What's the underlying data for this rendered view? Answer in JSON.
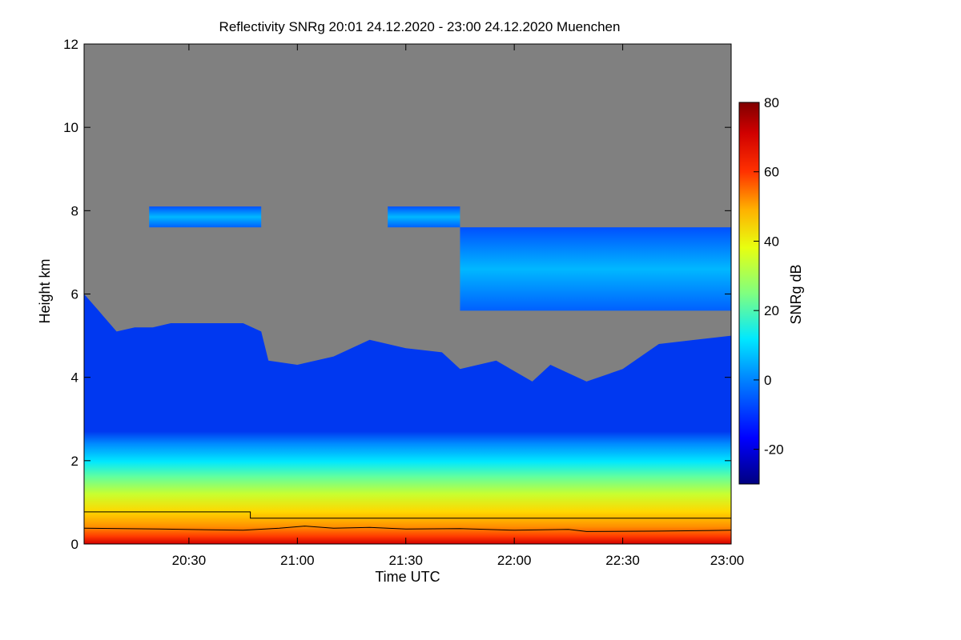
{
  "chart_data": {
    "type": "heatmap",
    "title": "Reflectivity SNRg   20:01 24.12.2020 - 23:00 24.12.2020 Muenchen",
    "xlabel": "Time UTC",
    "ylabel": "Height km",
    "x_range": [
      "20:01",
      "23:00"
    ],
    "xlim_minutes_utc": [
      1201,
      1380
    ],
    "x_ticks": [
      {
        "label": "20:30",
        "value": 1230
      },
      {
        "label": "21:00",
        "value": 1260
      },
      {
        "label": "21:30",
        "value": 1290
      },
      {
        "label": "22:00",
        "value": 1320
      },
      {
        "label": "22:30",
        "value": 1350
      },
      {
        "label": "23:00",
        "value": 1380
      }
    ],
    "ylim": [
      0,
      12
    ],
    "y_ticks": [
      {
        "label": "0",
        "value": 0
      },
      {
        "label": "2",
        "value": 2
      },
      {
        "label": "4",
        "value": 4
      },
      {
        "label": "6",
        "value": 6
      },
      {
        "label": "8",
        "value": 8
      },
      {
        "label": "10",
        "value": 10
      },
      {
        "label": "12",
        "value": 12
      }
    ],
    "colorbar": {
      "label": "SNRg dB",
      "range": [
        -30,
        80
      ],
      "ticks": [
        {
          "label": "-20",
          "value": -20
        },
        {
          "label": "0",
          "value": 0
        },
        {
          "label": "20",
          "value": 20
        },
        {
          "label": "40",
          "value": 40
        },
        {
          "label": "60",
          "value": 60
        },
        {
          "label": "80",
          "value": 80
        }
      ]
    },
    "no_signal_color": "#808080",
    "cloud_top_profile_km": [
      {
        "t": 1201,
        "h": 6.0
      },
      {
        "t": 1205,
        "h": 5.6
      },
      {
        "t": 1210,
        "h": 5.1
      },
      {
        "t": 1215,
        "h": 5.2
      },
      {
        "t": 1220,
        "h": 5.2
      },
      {
        "t": 1225,
        "h": 5.3
      },
      {
        "t": 1235,
        "h": 5.3
      },
      {
        "t": 1245,
        "h": 5.3
      },
      {
        "t": 1250,
        "h": 5.1
      },
      {
        "t": 1252,
        "h": 4.4
      },
      {
        "t": 1260,
        "h": 4.3
      },
      {
        "t": 1270,
        "h": 4.5
      },
      {
        "t": 1280,
        "h": 4.9
      },
      {
        "t": 1290,
        "h": 4.7
      },
      {
        "t": 1300,
        "h": 4.6
      },
      {
        "t": 1305,
        "h": 4.2
      },
      {
        "t": 1315,
        "h": 4.4
      },
      {
        "t": 1325,
        "h": 3.9
      },
      {
        "t": 1330,
        "h": 4.3
      },
      {
        "t": 1340,
        "h": 3.9
      },
      {
        "t": 1350,
        "h": 4.2
      },
      {
        "t": 1360,
        "h": 4.8
      },
      {
        "t": 1370,
        "h": 4.9
      },
      {
        "t": 1380,
        "h": 5.0
      }
    ],
    "upper_cloud_layers": [
      {
        "t0": 1219,
        "t1": 1250,
        "bottom_km": 7.6,
        "top_km": 8.1
      },
      {
        "t0": 1285,
        "t1": 1305,
        "bottom_km": 7.6,
        "top_km": 8.1
      },
      {
        "t0": 1305,
        "t1": 1380,
        "bottom_km": 5.6,
        "top_km": 7.6
      }
    ],
    "line_series": [
      {
        "points": [
          [
            1201,
            0.77
          ],
          [
            1247,
            0.77
          ],
          [
            1247,
            0.62
          ],
          [
            1380,
            0.62
          ]
        ]
      },
      {
        "points": [
          [
            1201,
            0.38
          ],
          [
            1222,
            0.36
          ],
          [
            1245,
            0.33
          ],
          [
            1255,
            0.38
          ],
          [
            1262,
            0.43
          ],
          [
            1270,
            0.38
          ],
          [
            1280,
            0.4
          ],
          [
            1290,
            0.36
          ],
          [
            1305,
            0.37
          ],
          [
            1320,
            0.33
          ],
          [
            1335,
            0.35
          ],
          [
            1340,
            0.3
          ],
          [
            1360,
            0.31
          ],
          [
            1380,
            0.33
          ]
        ]
      }
    ]
  }
}
